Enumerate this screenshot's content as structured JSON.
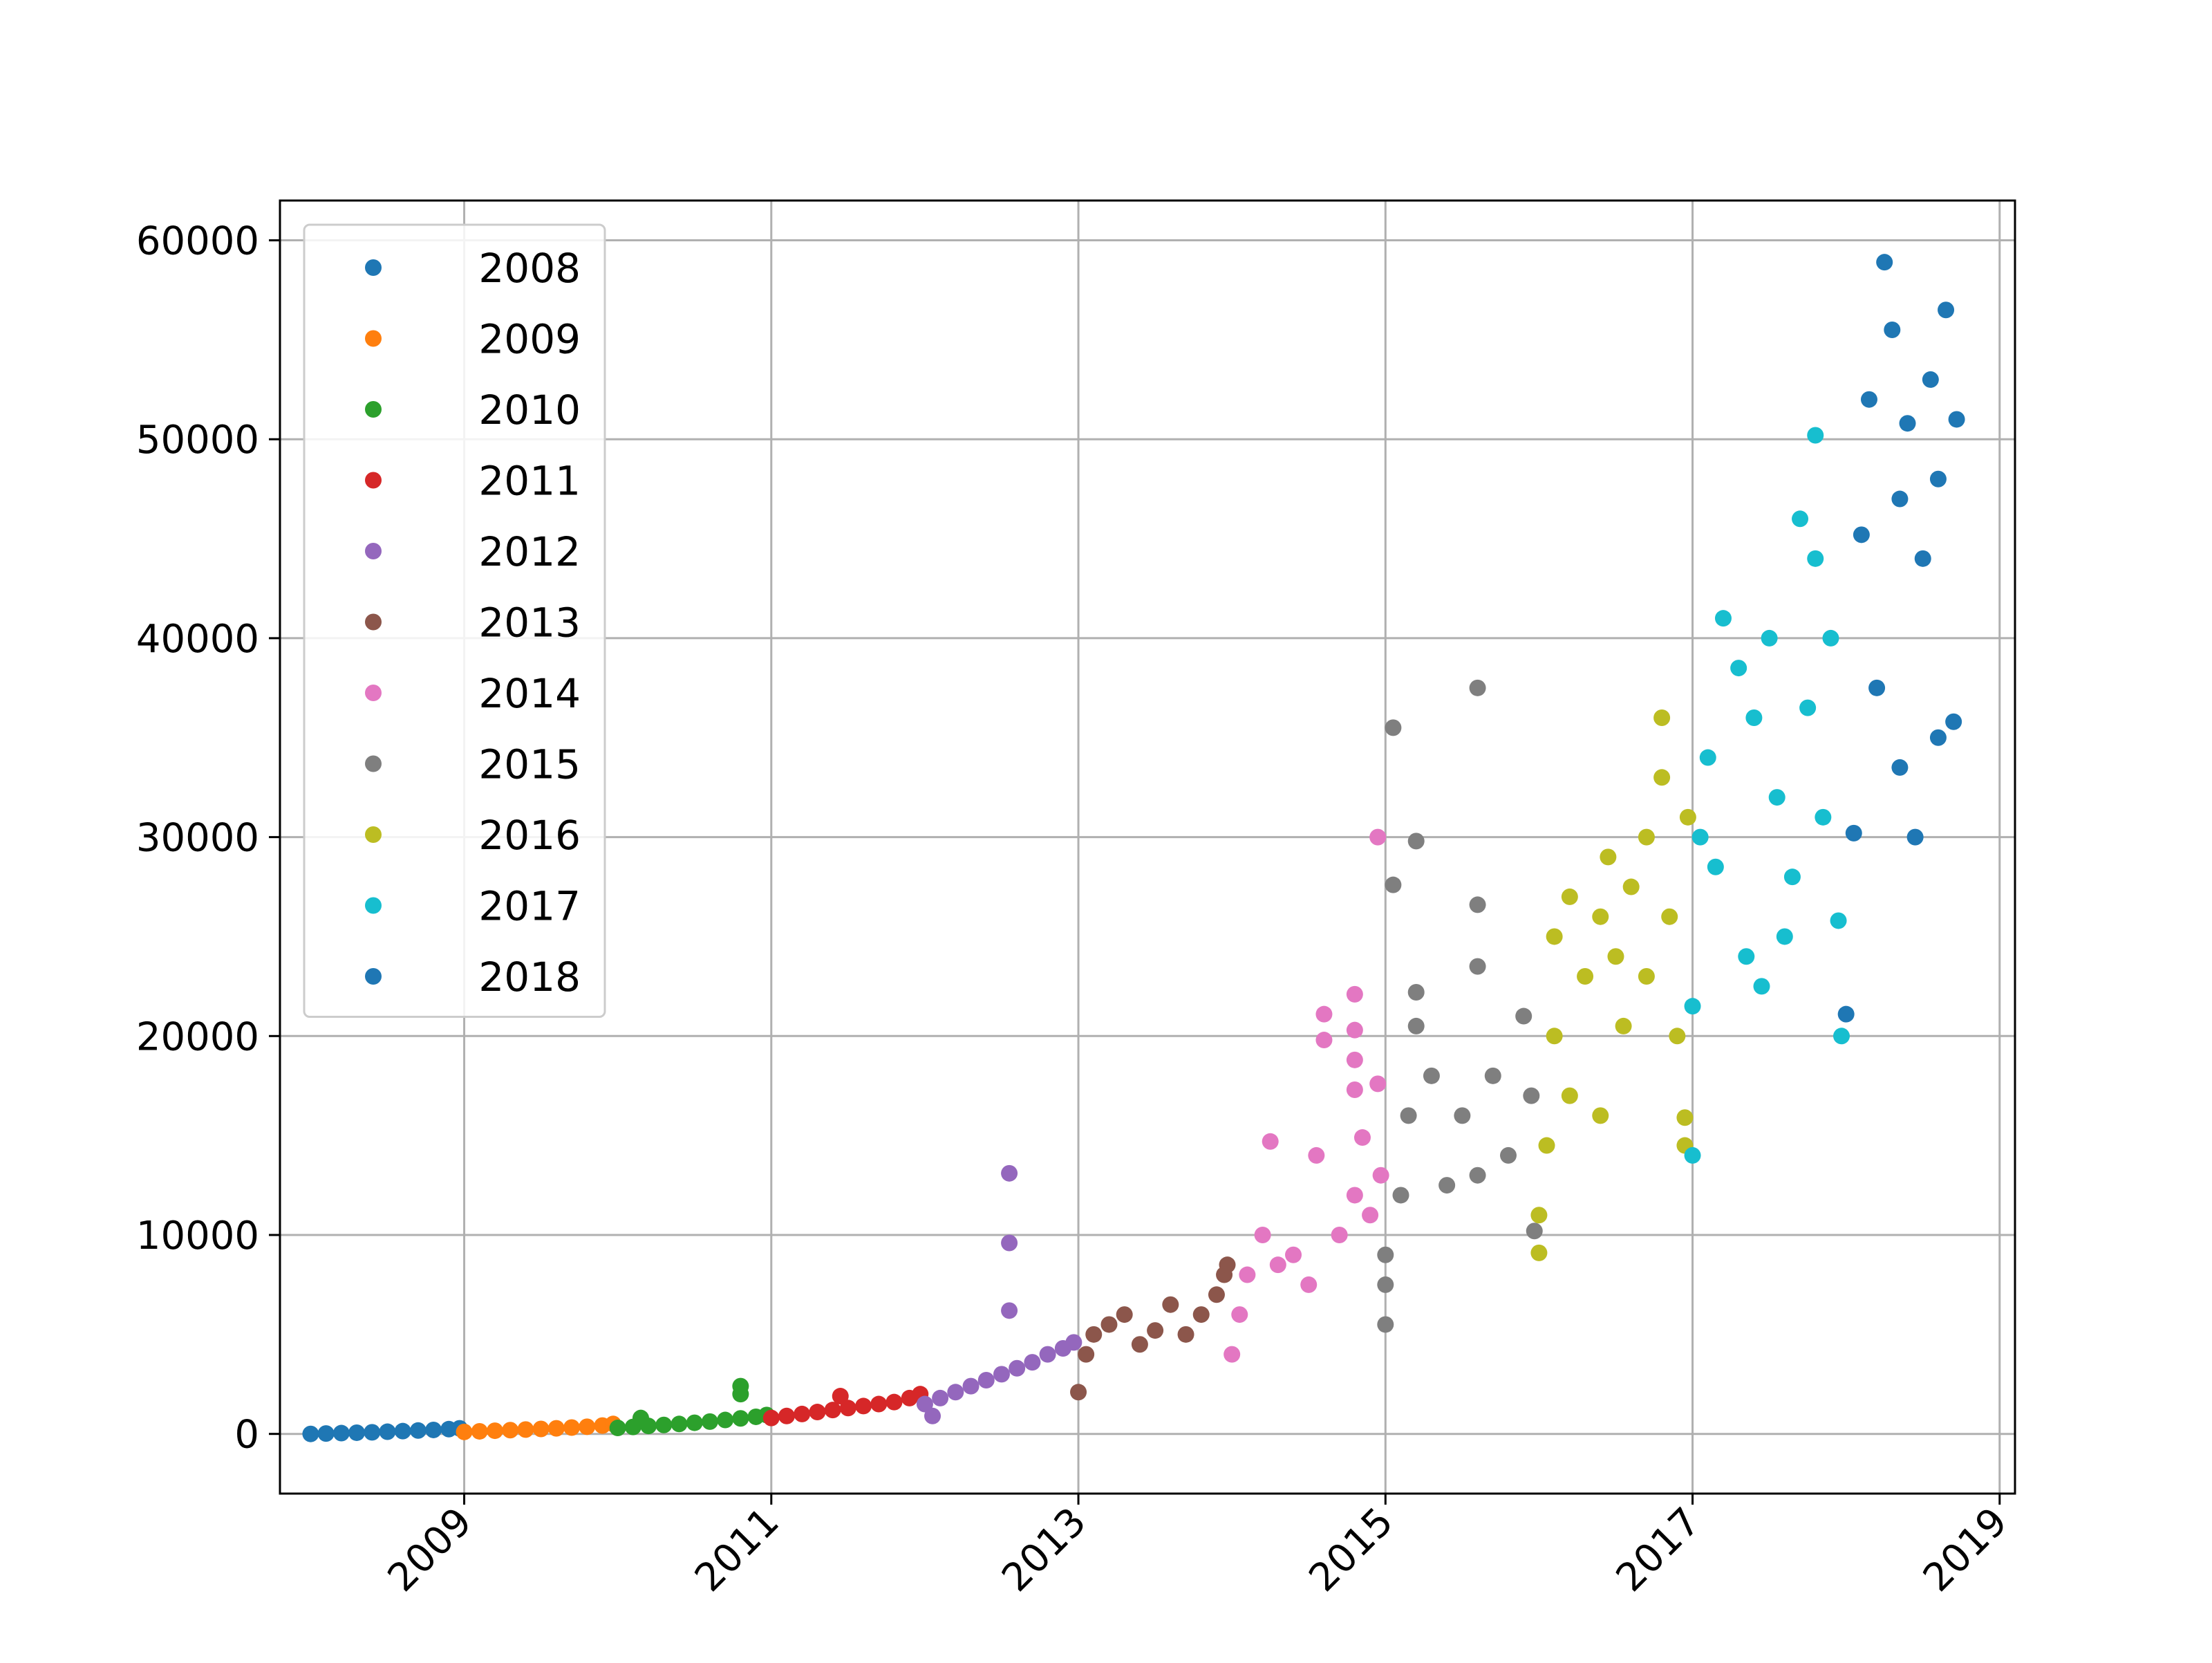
{
  "chart_data": {
    "type": "scatter",
    "title": "",
    "xlabel": "",
    "ylabel": "",
    "xlim": [
      2007.8,
      2019.1
    ],
    "ylim": [
      -3000,
      62000
    ],
    "grid": true,
    "legend_placement": "top-left",
    "x_ticks": [
      {
        "value": 2009,
        "label": "2009"
      },
      {
        "value": 2011,
        "label": "2011"
      },
      {
        "value": 2013,
        "label": "2013"
      },
      {
        "value": 2015,
        "label": "2015"
      },
      {
        "value": 2017,
        "label": "2017"
      },
      {
        "value": 2019,
        "label": "2019"
      }
    ],
    "y_ticks": [
      {
        "value": 0,
        "label": "0"
      },
      {
        "value": 10000,
        "label": "10000"
      },
      {
        "value": 20000,
        "label": "20000"
      },
      {
        "value": 30000,
        "label": "30000"
      },
      {
        "value": 40000,
        "label": "40000"
      },
      {
        "value": 50000,
        "label": "50000"
      },
      {
        "value": 60000,
        "label": "60000"
      }
    ],
    "series": [
      {
        "name": "2008",
        "color": "#1f77b4",
        "points": [
          [
            2008.0,
            0
          ],
          [
            2008.1,
            20
          ],
          [
            2008.2,
            40
          ],
          [
            2008.3,
            60
          ],
          [
            2008.4,
            80
          ],
          [
            2008.5,
            110
          ],
          [
            2008.6,
            140
          ],
          [
            2008.7,
            170
          ],
          [
            2008.8,
            200
          ],
          [
            2008.9,
            240
          ],
          [
            2008.97,
            280
          ]
        ]
      },
      {
        "name": "2009",
        "color": "#ff7f0e",
        "points": [
          [
            2009.0,
            100
          ],
          [
            2009.1,
            130
          ],
          [
            2009.2,
            160
          ],
          [
            2009.3,
            190
          ],
          [
            2009.4,
            220
          ],
          [
            2009.5,
            250
          ],
          [
            2009.6,
            280
          ],
          [
            2009.7,
            320
          ],
          [
            2009.8,
            360
          ],
          [
            2009.9,
            420
          ],
          [
            2009.97,
            500
          ]
        ]
      },
      {
        "name": "2010",
        "color": "#2ca02c",
        "points": [
          [
            2010.0,
            300
          ],
          [
            2010.1,
            350
          ],
          [
            2010.15,
            800
          ],
          [
            2010.2,
            400
          ],
          [
            2010.3,
            450
          ],
          [
            2010.4,
            500
          ],
          [
            2010.5,
            560
          ],
          [
            2010.6,
            620
          ],
          [
            2010.7,
            700
          ],
          [
            2010.8,
            780
          ],
          [
            2010.8,
            2400
          ],
          [
            2010.8,
            2000
          ],
          [
            2010.9,
            860
          ],
          [
            2010.97,
            950
          ]
        ]
      },
      {
        "name": "2011",
        "color": "#d62728",
        "points": [
          [
            2011.0,
            800
          ],
          [
            2011.1,
            900
          ],
          [
            2011.2,
            1000
          ],
          [
            2011.3,
            1100
          ],
          [
            2011.4,
            1200
          ],
          [
            2011.45,
            1900
          ],
          [
            2011.5,
            1300
          ],
          [
            2011.6,
            1400
          ],
          [
            2011.7,
            1500
          ],
          [
            2011.8,
            1600
          ],
          [
            2011.9,
            1800
          ],
          [
            2011.97,
            2000
          ]
        ]
      },
      {
        "name": "2012",
        "color": "#9467bd",
        "points": [
          [
            2012.0,
            1500
          ],
          [
            2012.05,
            900
          ],
          [
            2012.1,
            1800
          ],
          [
            2012.2,
            2100
          ],
          [
            2012.3,
            2400
          ],
          [
            2012.4,
            2700
          ],
          [
            2012.5,
            3000
          ],
          [
            2012.55,
            6200
          ],
          [
            2012.55,
            9600
          ],
          [
            2012.55,
            13100
          ],
          [
            2012.6,
            3300
          ],
          [
            2012.7,
            3600
          ],
          [
            2012.8,
            4000
          ],
          [
            2012.9,
            4300
          ],
          [
            2012.97,
            4600
          ]
        ]
      },
      {
        "name": "2013",
        "color": "#8c564b",
        "points": [
          [
            2013.0,
            2100
          ],
          [
            2013.05,
            4000
          ],
          [
            2013.1,
            5000
          ],
          [
            2013.2,
            5500
          ],
          [
            2013.3,
            6000
          ],
          [
            2013.4,
            4500
          ],
          [
            2013.5,
            5200
          ],
          [
            2013.6,
            6500
          ],
          [
            2013.7,
            5000
          ],
          [
            2013.8,
            6000
          ],
          [
            2013.9,
            7000
          ],
          [
            2013.95,
            8000
          ],
          [
            2013.97,
            8500
          ]
        ]
      },
      {
        "name": "2014",
        "color": "#e377c2",
        "points": [
          [
            2014.0,
            4000
          ],
          [
            2014.05,
            6000
          ],
          [
            2014.1,
            8000
          ],
          [
            2014.2,
            10000
          ],
          [
            2014.25,
            14700
          ],
          [
            2014.3,
            8500
          ],
          [
            2014.4,
            9000
          ],
          [
            2014.5,
            7500
          ],
          [
            2014.55,
            14000
          ],
          [
            2014.6,
            21100
          ],
          [
            2014.6,
            19800
          ],
          [
            2014.7,
            10000
          ],
          [
            2014.8,
            12000
          ],
          [
            2014.8,
            22100
          ],
          [
            2014.8,
            20300
          ],
          [
            2014.8,
            18800
          ],
          [
            2014.8,
            17300
          ],
          [
            2014.85,
            14900
          ],
          [
            2014.9,
            11000
          ],
          [
            2014.95,
            17600
          ],
          [
            2014.95,
            30000
          ],
          [
            2014.97,
            13000
          ]
        ]
      },
      {
        "name": "2015",
        "color": "#7f7f7f",
        "points": [
          [
            2015.0,
            5500
          ],
          [
            2015.0,
            7500
          ],
          [
            2015.0,
            9000
          ],
          [
            2015.05,
            35500
          ],
          [
            2015.05,
            27600
          ],
          [
            2015.1,
            12000
          ],
          [
            2015.15,
            16000
          ],
          [
            2015.2,
            29800
          ],
          [
            2015.2,
            22200
          ],
          [
            2015.2,
            20500
          ],
          [
            2015.3,
            18000
          ],
          [
            2015.4,
            12500
          ],
          [
            2015.5,
            16000
          ],
          [
            2015.6,
            26600
          ],
          [
            2015.6,
            37500
          ],
          [
            2015.6,
            23500
          ],
          [
            2015.6,
            13000
          ],
          [
            2015.7,
            18000
          ],
          [
            2015.8,
            14000
          ],
          [
            2015.9,
            21000
          ],
          [
            2015.95,
            17000
          ],
          [
            2015.97,
            10200
          ]
        ]
      },
      {
        "name": "2016",
        "color": "#bcbd22",
        "points": [
          [
            2016.0,
            9100
          ],
          [
            2016.0,
            11000
          ],
          [
            2016.05,
            14500
          ],
          [
            2016.1,
            20000
          ],
          [
            2016.1,
            25000
          ],
          [
            2016.2,
            27000
          ],
          [
            2016.2,
            17000
          ],
          [
            2016.3,
            23000
          ],
          [
            2016.4,
            26000
          ],
          [
            2016.4,
            16000
          ],
          [
            2016.45,
            29000
          ],
          [
            2016.5,
            24000
          ],
          [
            2016.55,
            20500
          ],
          [
            2016.6,
            27500
          ],
          [
            2016.7,
            23000
          ],
          [
            2016.7,
            30000
          ],
          [
            2016.8,
            36000
          ],
          [
            2016.8,
            33000
          ],
          [
            2016.85,
            26000
          ],
          [
            2016.9,
            20000
          ],
          [
            2016.95,
            15900
          ],
          [
            2016.95,
            14500
          ],
          [
            2016.97,
            31000
          ]
        ]
      },
      {
        "name": "2017",
        "color": "#17becf",
        "points": [
          [
            2017.0,
            14000
          ],
          [
            2017.0,
            21500
          ],
          [
            2017.05,
            30000
          ],
          [
            2017.1,
            34000
          ],
          [
            2017.15,
            28500
          ],
          [
            2017.2,
            41000
          ],
          [
            2017.3,
            38500
          ],
          [
            2017.35,
            24000
          ],
          [
            2017.4,
            36000
          ],
          [
            2017.45,
            22500
          ],
          [
            2017.5,
            40000
          ],
          [
            2017.55,
            32000
          ],
          [
            2017.6,
            25000
          ],
          [
            2017.65,
            28000
          ],
          [
            2017.7,
            46000
          ],
          [
            2017.75,
            36500
          ],
          [
            2017.8,
            44000
          ],
          [
            2017.8,
            50200
          ],
          [
            2017.85,
            31000
          ],
          [
            2017.9,
            40000
          ],
          [
            2017.95,
            25800
          ],
          [
            2017.97,
            20000
          ]
        ]
      },
      {
        "name": "2018",
        "color": "#1f77b4",
        "points": [
          [
            2018.0,
            21100
          ],
          [
            2018.05,
            30200
          ],
          [
            2018.1,
            45200
          ],
          [
            2018.15,
            52000
          ],
          [
            2018.2,
            37500
          ],
          [
            2018.25,
            58900
          ],
          [
            2018.3,
            55500
          ],
          [
            2018.35,
            47000
          ],
          [
            2018.35,
            33500
          ],
          [
            2018.4,
            50800
          ],
          [
            2018.45,
            30000
          ],
          [
            2018.5,
            44000
          ],
          [
            2018.55,
            53000
          ],
          [
            2018.6,
            35000
          ],
          [
            2018.6,
            48000
          ],
          [
            2018.65,
            56500
          ],
          [
            2018.7,
            35800
          ],
          [
            2018.72,
            51000
          ]
        ]
      }
    ]
  }
}
